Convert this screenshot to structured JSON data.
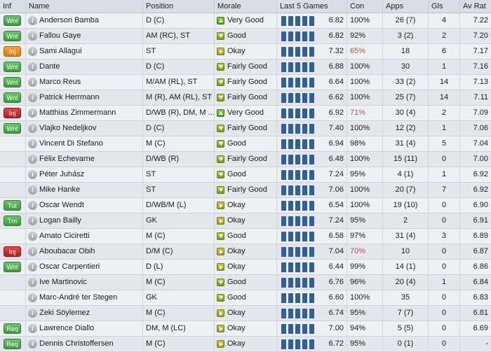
{
  "columns": [
    "Inf",
    "Name",
    "Position",
    "Morale",
    "Last 5 Games",
    "Con",
    "Apps",
    "Gls",
    "Av Rat"
  ],
  "rows": [
    {
      "inf": "Wnt",
      "inf_color": "green",
      "name": "Anderson Bamba",
      "position": "D (C)",
      "morale_icon": "up",
      "morale": "Very Good",
      "last5": [
        5,
        5,
        5,
        5,
        5
      ],
      "last5_avg": "6.82",
      "con": "100%",
      "con_low": false,
      "apps": "26 (7)",
      "gls": "4",
      "av_rat": "7.22"
    },
    {
      "inf": "Wnt",
      "inf_color": "green",
      "name": "Fallou Gaye",
      "position": "AM (RC), ST",
      "morale_icon": "down",
      "morale": "Good",
      "last5": [
        5,
        5,
        5,
        5,
        5
      ],
      "last5_avg": "6.82",
      "con": "92%",
      "con_low": false,
      "apps": "3 (2)",
      "gls": "2",
      "av_rat": "7.20"
    },
    {
      "inf": "Inj",
      "inf_color": "orange",
      "name": "Sami Allagui",
      "position": "ST",
      "morale_icon": "right",
      "morale": "Okay",
      "last5": [
        5,
        5,
        5,
        5,
        5
      ],
      "last5_avg": "7.32",
      "con": "65%",
      "con_low": true,
      "apps": "18",
      "gls": "6",
      "av_rat": "7.17"
    },
    {
      "inf": "Wnt",
      "inf_color": "green",
      "name": "Dante",
      "position": "D (C)",
      "morale_icon": "down",
      "morale": "Fairly Good",
      "last5": [
        5,
        5,
        5,
        5,
        5
      ],
      "last5_avg": "6.88",
      "con": "100%",
      "con_low": false,
      "apps": "30",
      "gls": "1",
      "av_rat": "7.16"
    },
    {
      "inf": "Wnt",
      "inf_color": "green",
      "name": "Marco Reus",
      "position": "M/AM (RL), ST",
      "morale_icon": "down",
      "morale": "Fairly Good",
      "last5": [
        5,
        5,
        5,
        5,
        5
      ],
      "last5_avg": "6.64",
      "con": "100%",
      "con_low": false,
      "apps": "33 (2)",
      "gls": "14",
      "av_rat": "7.13"
    },
    {
      "inf": "Wnt",
      "inf_color": "green",
      "name": "Patrick Herrmann",
      "position": "M (R), AM (RL), ST",
      "morale_icon": "down",
      "morale": "Fairly Good",
      "last5": [
        5,
        5,
        5,
        5,
        5
      ],
      "last5_avg": "6.62",
      "con": "100%",
      "con_low": false,
      "apps": "25 (7)",
      "gls": "14",
      "av_rat": "7.11"
    },
    {
      "inf": "Inj",
      "inf_color": "red",
      "name": "Matthias Zimmermann",
      "position": "D/WB (R), DM, M ...",
      "morale_icon": "up",
      "morale": "Very Good",
      "last5": [
        5,
        5,
        5,
        5,
        5
      ],
      "last5_avg": "6.92",
      "con": "71%",
      "con_low": true,
      "apps": "30 (4)",
      "gls": "2",
      "av_rat": "7.09"
    },
    {
      "inf": "Wnt",
      "inf_color": "green",
      "name": "Vlajko Nedeljkov",
      "position": "D (C)",
      "morale_icon": "down",
      "morale": "Fairly Good",
      "last5": [
        5,
        5,
        5,
        5,
        5
      ],
      "last5_avg": "7.40",
      "con": "100%",
      "con_low": false,
      "apps": "12 (2)",
      "gls": "1",
      "av_rat": "7.06"
    },
    {
      "inf": "",
      "inf_color": "",
      "name": "Vincent Di Stefano",
      "position": "M (C)",
      "morale_icon": "down",
      "morale": "Good",
      "last5": [
        5,
        5,
        5,
        5,
        5
      ],
      "last5_avg": "6.94",
      "con": "98%",
      "con_low": false,
      "apps": "31 (4)",
      "gls": "5",
      "av_rat": "7.04"
    },
    {
      "inf": "",
      "inf_color": "",
      "name": "Félix Echevarne",
      "position": "D/WB (R)",
      "morale_icon": "down",
      "morale": "Fairly Good",
      "last5": [
        5,
        5,
        5,
        5,
        5
      ],
      "last5_avg": "6.48",
      "con": "100%",
      "con_low": false,
      "apps": "15 (11)",
      "gls": "0",
      "av_rat": "7.00"
    },
    {
      "inf": "",
      "inf_color": "",
      "name": "Péter Juhász",
      "position": "ST",
      "morale_icon": "down",
      "morale": "Good",
      "last5": [
        5,
        5,
        5,
        5,
        5
      ],
      "last5_avg": "7.24",
      "con": "95%",
      "con_low": false,
      "apps": "4 (1)",
      "gls": "1",
      "av_rat": "6.92"
    },
    {
      "inf": "",
      "inf_color": "",
      "name": "Mike Hanke",
      "position": "ST",
      "morale_icon": "down",
      "morale": "Fairly Good",
      "last5": [
        5,
        5,
        5,
        5,
        5
      ],
      "last5_avg": "7.06",
      "con": "100%",
      "con_low": false,
      "apps": "20 (7)",
      "gls": "7",
      "av_rat": "6.92"
    },
    {
      "inf": "Tut",
      "inf_color": "green",
      "name": "Oscar Wendt",
      "position": "D/WB/M (L)",
      "morale_icon": "right",
      "morale": "Okay",
      "last5": [
        5,
        5,
        5,
        5,
        5
      ],
      "last5_avg": "6.54",
      "con": "100%",
      "con_low": false,
      "apps": "19 (10)",
      "gls": "0",
      "av_rat": "6.90"
    },
    {
      "inf": "Trn",
      "inf_color": "green",
      "name": "Logan Bailly",
      "position": "GK",
      "morale_icon": "right",
      "morale": "Okay",
      "last5": [
        5,
        5,
        5,
        5,
        5
      ],
      "last5_avg": "7.24",
      "con": "95%",
      "con_low": false,
      "apps": "2",
      "gls": "0",
      "av_rat": "6.91"
    },
    {
      "inf": "",
      "inf_color": "",
      "name": "Amato Ciciretti",
      "position": "M (C)",
      "morale_icon": "down",
      "morale": "Good",
      "last5": [
        5,
        5,
        5,
        5,
        5
      ],
      "last5_avg": "6.58",
      "con": "97%",
      "con_low": false,
      "apps": "31 (4)",
      "gls": "3",
      "av_rat": "6.89"
    },
    {
      "inf": "Inj",
      "inf_color": "red",
      "name": "Aboubacar Obih",
      "position": "D/M (C)",
      "morale_icon": "right",
      "morale": "Okay",
      "last5": [
        5,
        5,
        5,
        5,
        5
      ],
      "last5_avg": "7.04",
      "con": "70%",
      "con_low": true,
      "apps": "10",
      "gls": "0",
      "av_rat": "6.87"
    },
    {
      "inf": "Wnt",
      "inf_color": "green",
      "name": "Oscar Carpentieri",
      "position": "D (L)",
      "morale_icon": "right",
      "morale": "Okay",
      "last5": [
        5,
        5,
        5,
        5,
        5
      ],
      "last5_avg": "6.44",
      "con": "99%",
      "con_low": false,
      "apps": "14 (1)",
      "gls": "0",
      "av_rat": "6.86"
    },
    {
      "inf": "",
      "inf_color": "",
      "name": "Ive Martinovic",
      "position": "M (C)",
      "morale_icon": "down",
      "morale": "Good",
      "last5": [
        5,
        5,
        5,
        5,
        5
      ],
      "last5_avg": "6.76",
      "con": "96%",
      "con_low": false,
      "apps": "20 (4)",
      "gls": "1",
      "av_rat": "6.84"
    },
    {
      "inf": "",
      "inf_color": "",
      "name": "Marc-André ter Stegen",
      "position": "GK",
      "morale_icon": "down",
      "morale": "Good",
      "last5": [
        5,
        5,
        5,
        5,
        5
      ],
      "last5_avg": "6.60",
      "con": "100%",
      "con_low": false,
      "apps": "35",
      "gls": "0",
      "av_rat": "6.83"
    },
    {
      "inf": "",
      "inf_color": "",
      "name": "Zeki Söylemez",
      "position": "M (C)",
      "morale_icon": "right",
      "morale": "Okay",
      "last5": [
        5,
        5,
        5,
        5,
        5
      ],
      "last5_avg": "6.74",
      "con": "95%",
      "con_low": false,
      "apps": "7 (7)",
      "gls": "0",
      "av_rat": "6.81"
    },
    {
      "inf": "Req",
      "inf_color": "green",
      "name": "Lawrence Diallo",
      "position": "DM, M (LC)",
      "morale_icon": "right",
      "morale": "Okay",
      "last5": [
        5,
        5,
        5,
        5,
        5
      ],
      "last5_avg": "7.00",
      "con": "94%",
      "con_low": false,
      "apps": "5 (5)",
      "gls": "0",
      "av_rat": "6.69"
    },
    {
      "inf": "Req",
      "inf_color": "green",
      "name": "Dennis Christoffersen",
      "position": "M (C)",
      "morale_icon": "right",
      "morale": "Okay",
      "last5": [
        5,
        5,
        5,
        5,
        5
      ],
      "last5_avg": "6.72",
      "con": "95%",
      "con_low": false,
      "apps": "0 (1)",
      "gls": "0",
      "av_rat": "-"
    }
  ],
  "colors": {
    "bar": "#2f5f9c",
    "con_low": "#b0544a"
  }
}
